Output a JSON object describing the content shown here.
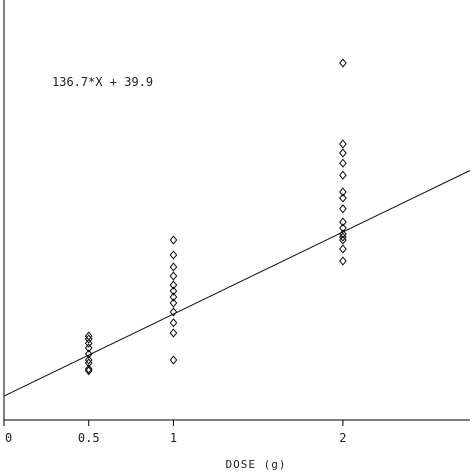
{
  "chart_data": {
    "type": "scatter",
    "title": "",
    "xlabel": "DOSE (g)",
    "ylabel": "",
    "xlim": [
      0,
      2.75
    ],
    "ylim": [
      0,
      700
    ],
    "x_ticks": [
      {
        "value": 0,
        "label": "0"
      },
      {
        "value": 0.5,
        "label": "0.5"
      },
      {
        "value": 1,
        "label": "1"
      },
      {
        "value": 2,
        "label": "2"
      }
    ],
    "annotation": "136.7*X + 39.9",
    "fit_line": {
      "slope": 136.7,
      "intercept": 39.9
    },
    "grid": false,
    "series": [
      {
        "marker": "diamond",
        "points": [
          {
            "x": 0.5,
            "y": 140
          },
          {
            "x": 0.5,
            "y": 135
          },
          {
            "x": 0.5,
            "y": 128
          },
          {
            "x": 0.5,
            "y": 120
          },
          {
            "x": 0.5,
            "y": 110
          },
          {
            "x": 0.5,
            "y": 100
          },
          {
            "x": 0.5,
            "y": 95
          },
          {
            "x": 0.5,
            "y": 85
          },
          {
            "x": 0.5,
            "y": 82
          },
          {
            "x": 1,
            "y": 300
          },
          {
            "x": 1,
            "y": 275
          },
          {
            "x": 1,
            "y": 255
          },
          {
            "x": 1,
            "y": 240
          },
          {
            "x": 1,
            "y": 225
          },
          {
            "x": 1,
            "y": 215
          },
          {
            "x": 1,
            "y": 205
          },
          {
            "x": 1,
            "y": 195
          },
          {
            "x": 1,
            "y": 180
          },
          {
            "x": 1,
            "y": 162
          },
          {
            "x": 1,
            "y": 145
          },
          {
            "x": 1,
            "y": 100
          },
          {
            "x": 2,
            "y": 595
          },
          {
            "x": 2,
            "y": 460
          },
          {
            "x": 2,
            "y": 445
          },
          {
            "x": 2,
            "y": 428
          },
          {
            "x": 2,
            "y": 408
          },
          {
            "x": 2,
            "y": 380
          },
          {
            "x": 2,
            "y": 370
          },
          {
            "x": 2,
            "y": 352
          },
          {
            "x": 2,
            "y": 330
          },
          {
            "x": 2,
            "y": 320
          },
          {
            "x": 2,
            "y": 310
          },
          {
            "x": 2,
            "y": 305
          },
          {
            "x": 2,
            "y": 300
          },
          {
            "x": 2,
            "y": 285
          },
          {
            "x": 2,
            "y": 265
          }
        ]
      }
    ]
  }
}
